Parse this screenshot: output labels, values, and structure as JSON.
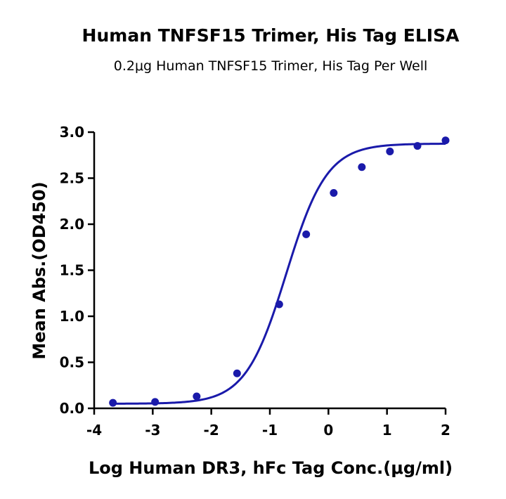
{
  "chart_data": {
    "type": "scatter",
    "title": "Human TNFSF15 Trimer, His Tag ELISA",
    "subtitle": "0.2μg Human TNFSF15 Trimer, His Tag Per Well",
    "xlabel": "Log Human DR3, hFc Tag Conc.(μg/ml)",
    "ylabel": "Mean Abs.(OD450)",
    "xlim": [
      -4,
      2
    ],
    "ylim": [
      0,
      3
    ],
    "xticks": [
      -4,
      -3,
      -2,
      -1,
      0,
      1,
      2
    ],
    "yticks": [
      0,
      0.5,
      1,
      1.5,
      2,
      2.5,
      3
    ],
    "xtick_labels": [
      "-4",
      "-3",
      "-2",
      "-1",
      "0",
      "1",
      "2"
    ],
    "ytick_labels": [
      "0.0",
      "0.5",
      "1.0",
      "1.5",
      "2.0",
      "2.5",
      "3.0"
    ],
    "grid": false,
    "color": "#1a1aaa",
    "series": [
      {
        "x": [
          -3.68,
          -2.96,
          -2.25,
          -1.56,
          -0.84,
          -0.38,
          0.09,
          0.57,
          1.05,
          1.52,
          2.0
        ],
        "y": [
          0.06,
          0.07,
          0.13,
          0.38,
          1.13,
          1.89,
          2.34,
          2.62,
          2.79,
          2.85,
          2.91
        ],
        "fit": {
          "type": "4PL",
          "bottom": 0.05,
          "top": 2.875,
          "logEC50": -0.72,
          "hill": 1.25
        }
      }
    ]
  }
}
